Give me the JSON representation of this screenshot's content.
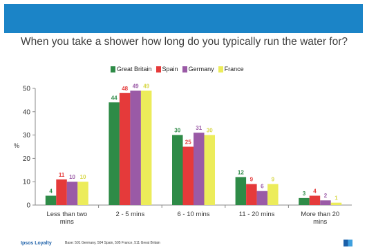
{
  "question": "When you take a shower how long do you typically run the water for?",
  "footer": {
    "brand": "Ipsos Loyalty",
    "note": "Base: 501 Germany, 504 Spain, 505 France, 511 Great Britain"
  },
  "colors": {
    "header": "#1b84c7",
    "Great Britain": "#2e8b47",
    "Spain": "#e53a3a",
    "Germany": "#9a5aa6",
    "France": "#ecec5a"
  },
  "chart_data": {
    "type": "bar",
    "title": "When you take a shower how long do you typically run the water for?",
    "ylabel": "%",
    "xlabel": "",
    "ylim": [
      0,
      50
    ],
    "yticks": [
      0,
      10,
      20,
      30,
      40,
      50
    ],
    "grid": false,
    "legend_position": "top-center",
    "categories": [
      [
        "Less than two",
        "mins"
      ],
      [
        "2 - 5 mins"
      ],
      [
        "6 - 10 mins"
      ],
      [
        "11 - 20 mins"
      ],
      [
        "More than 20",
        "mins"
      ]
    ],
    "series": [
      {
        "name": "Great Britain",
        "color": "#2e8b47",
        "label_color": "#2e8b47",
        "values": [
          4,
          44,
          30,
          12,
          3
        ]
      },
      {
        "name": "Spain",
        "color": "#e53a3a",
        "label_color": "#e53a3a",
        "values": [
          11,
          48,
          25,
          9,
          4
        ]
      },
      {
        "name": "Germany",
        "color": "#9a5aa6",
        "label_color": "#9a5aa6",
        "values": [
          10,
          49,
          31,
          6,
          2
        ]
      },
      {
        "name": "France",
        "color": "#ecec5a",
        "label_color": "#d8d84a",
        "values": [
          10,
          49,
          30,
          9,
          1
        ]
      }
    ]
  }
}
